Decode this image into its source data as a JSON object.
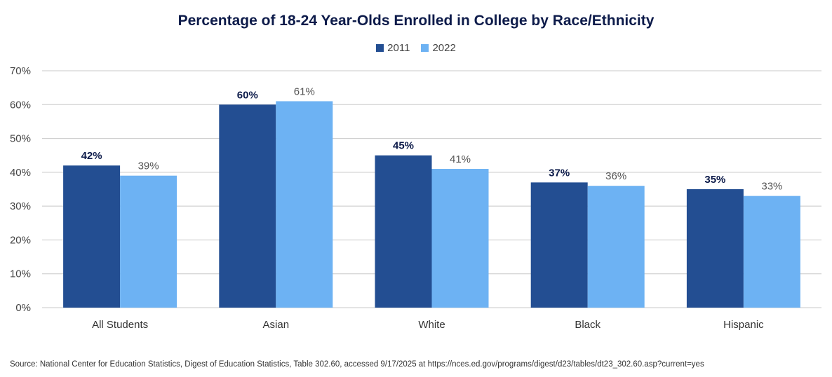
{
  "chart_data": {
    "type": "bar",
    "title": "Percentage of 18-24 Year-Olds Enrolled in College by Race/Ethnicity",
    "categories": [
      "All Students",
      "Asian",
      "White",
      "Black",
      "Hispanic"
    ],
    "series": [
      {
        "name": "2011",
        "color": "#234e92",
        "values": [
          42,
          60,
          45,
          37,
          35
        ],
        "labels": [
          "42%",
          "60%",
          "45%",
          "37%",
          "35%"
        ],
        "label_style": "bold"
      },
      {
        "name": "2022",
        "color": "#6db2f3",
        "values": [
          39,
          61,
          41,
          36,
          33
        ],
        "labels": [
          "39%",
          "61%",
          "41%",
          "36%",
          "33%"
        ],
        "label_style": "normal"
      }
    ],
    "ylim": [
      0,
      70
    ],
    "yticks": [
      0,
      10,
      20,
      30,
      40,
      50,
      60,
      70
    ],
    "ytick_labels": [
      "0%",
      "10%",
      "20%",
      "30%",
      "40%",
      "50%",
      "60%",
      "70%"
    ],
    "xlabel": "",
    "ylabel": "",
    "grid": true,
    "legend_position": "top-center"
  },
  "source": "Source: National Center for Education Statistics, Digest of Education Statistics, Table 302.60, accessed 9/17/2025 at https://nces.ed.gov/programs/digest/d23/tables/dt23_302.60.asp?current=yes"
}
